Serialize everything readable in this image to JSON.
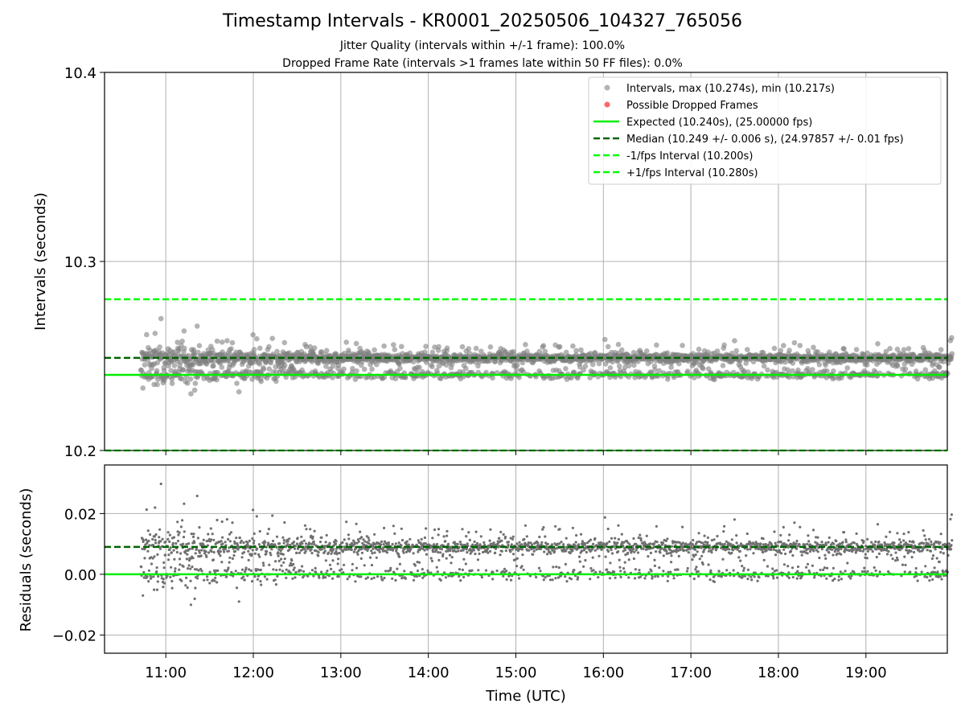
{
  "header": {
    "title": "Timestamp Intervals - KR0001_20250506_104327_765056",
    "subtitle_1": "Jitter Quality (intervals within +/-1 frame): 100.0%",
    "subtitle_2": "Dropped Frame Rate (intervals >1 frames late within 50 FF files): 0.0%"
  },
  "colors": {
    "points": "#808080",
    "dropped": "#ff0000",
    "expected": "#00ee00",
    "median": "#006400",
    "fps_interval": "#00ff00",
    "grid": "#b0b0b0"
  },
  "chart_data": [
    {
      "type": "scatter",
      "ylabel": "Intervals (seconds)",
      "ylim": [
        10.2,
        10.4
      ],
      "yticks": [
        "10.2",
        "10.3",
        "10.4"
      ],
      "xlim_hours": [
        10.3,
        19.93
      ],
      "grid": true,
      "legend_position": "top-right",
      "legend": [
        "Intervals, max (10.274s), min (10.217s)",
        "Possible Dropped Frames",
        "Expected (10.240s), (25.00000 fps)",
        "Median (10.249 +/- 0.006 s), (24.97857 +/- 0.01 fps)",
        "-1/fps Interval (10.200s)",
        "+1/fps Interval (10.280s)"
      ],
      "series": [
        {
          "name": "Intervals",
          "x_range": [
            "10:43",
            "19:59"
          ],
          "y_max": 10.274,
          "y_min": 10.217
        },
        {
          "name": "Possible Dropped Frames",
          "count": 0
        }
      ],
      "reference_lines": [
        {
          "name": "Expected",
          "y": 10.24
        },
        {
          "name": "Median",
          "y": 10.249
        },
        {
          "name": "-1/fps Interval",
          "y": 10.2
        },
        {
          "name": "+1/fps Interval",
          "y": 10.28
        }
      ]
    },
    {
      "type": "scatter",
      "xlabel": "Time (UTC)",
      "ylabel": "Residuals (seconds)",
      "ylim": [
        -0.026,
        0.036
      ],
      "yticks": [
        "−0.02",
        "0.00",
        "0.02"
      ],
      "xticks": [
        "11:00",
        "12:00",
        "13:00",
        "14:00",
        "15:00",
        "16:00",
        "17:00",
        "18:00",
        "19:00"
      ],
      "grid": true,
      "reference_lines": [
        {
          "name": "Expected",
          "y": 0.0
        },
        {
          "name": "Median",
          "y": 0.009
        }
      ]
    }
  ]
}
